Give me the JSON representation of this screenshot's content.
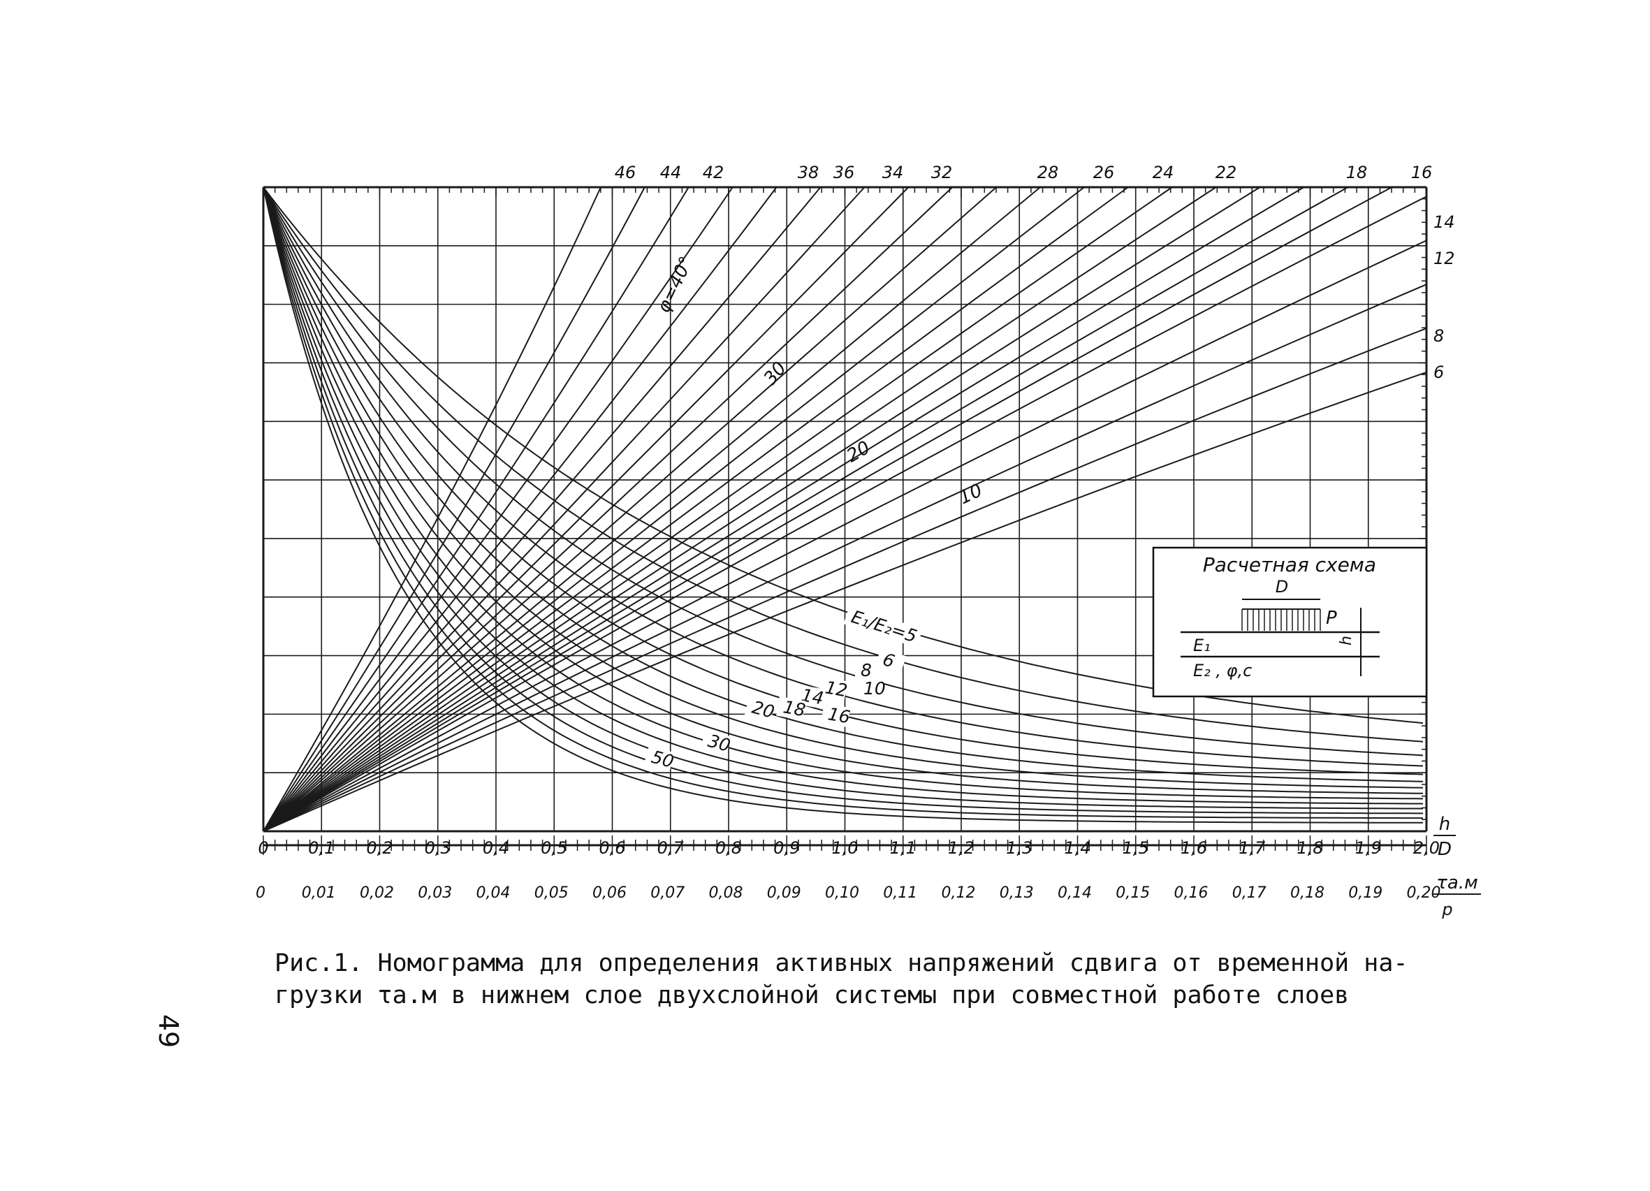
{
  "top_scale": {
    "labels": [
      "46",
      "44",
      "42",
      "38",
      "36",
      "34",
      "32",
      "28",
      "26",
      "24",
      "22",
      "18",
      "16"
    ]
  },
  "right_scale": {
    "labels": [
      "14",
      "12",
      "8",
      "6"
    ]
  },
  "ray_labels": [
    "φ=40°",
    "30",
    "20",
    "10"
  ],
  "curve_labels": [
    "E₁/E₂=5",
    "6",
    "8",
    "10",
    "12",
    "14",
    "16",
    "18",
    "20",
    "30",
    "50"
  ],
  "hd_axis": {
    "labels": [
      "0",
      "0,1",
      "0,2",
      "0,3",
      "0,4",
      "0,5",
      "0,6",
      "0,7",
      "0,8",
      "0,9",
      "1,0",
      "1,1",
      "1,2",
      "1,3",
      "1,4",
      "1,5",
      "1,6",
      "1,7",
      "1,8",
      "1,9",
      "2,0"
    ],
    "title_num": "h",
    "title_den": "D"
  },
  "tau_axis": {
    "labels": [
      "0",
      "0,01",
      "0,02",
      "0,03",
      "0,04",
      "0,05",
      "0,06",
      "0,07",
      "0,08",
      "0,09",
      "0,10",
      "0,11",
      "0,12",
      "0,13",
      "0,14",
      "0,15",
      "0,16",
      "0,17",
      "0,18",
      "0,19",
      "0,20"
    ],
    "title_num": "τа.м",
    "title_den": "p"
  },
  "scheme": {
    "title": "Расчетная схема",
    "D": "D",
    "P": "P",
    "h": "h",
    "E1": "E₁",
    "E2": "E₂ ,  φ,c"
  },
  "caption": {
    "lines": [
      "Рис.1. Номограмма для определения активных напряжений сдвига от временной на-",
      "грузки  τа.м  в нижнем слое двухслойной системы при совместной работе слоев"
    ]
  },
  "page_number": "49"
}
